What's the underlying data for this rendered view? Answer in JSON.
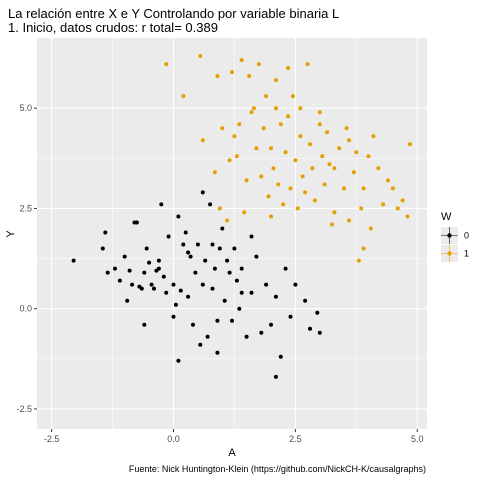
{
  "chart_data": {
    "type": "scatter",
    "title": "La relación entre X e Y Controlando por variable binaria L",
    "subtitle": "1. Inicio, datos crudos: r total= 0.389",
    "xlabel": "A",
    "ylabel": "Y",
    "caption": "Fuente: Nick Huntington-Klein (https://github.com/NickCH-K/causalgraphs)",
    "xlim": [
      -2.8,
      5.2
    ],
    "ylim": [
      -3.0,
      6.75
    ],
    "x_ticks": [
      -2.5,
      0.0,
      2.5,
      5.0
    ],
    "x_tick_labels": [
      "-2.5",
      "0.0",
      "2.5",
      "5.0"
    ],
    "y_ticks": [
      -2.5,
      0.0,
      2.5,
      5.0
    ],
    "y_tick_labels": [
      "-2.5",
      "0.0",
      "2.5",
      "5.0"
    ],
    "grid": true,
    "legend": {
      "title": "W",
      "position": "right",
      "entries": [
        "0",
        "1"
      ]
    },
    "colors": {
      "panel": "#ebebeb",
      "grid": "#ffffff",
      "w0": "#000000",
      "w1": "#e69f00"
    },
    "series": [
      {
        "name": "0",
        "color": "#000000",
        "points": [
          [
            -2.05,
            1.2
          ],
          [
            -1.45,
            1.5
          ],
          [
            -1.4,
            1.9
          ],
          [
            -1.35,
            0.9
          ],
          [
            -1.2,
            1.0
          ],
          [
            -1.1,
            0.7
          ],
          [
            -1.0,
            1.3
          ],
          [
            -0.95,
            0.2
          ],
          [
            -0.9,
            0.95
          ],
          [
            -0.85,
            0.6
          ],
          [
            -0.8,
            2.15
          ],
          [
            -0.75,
            2.15
          ],
          [
            -0.7,
            0.55
          ],
          [
            -0.65,
            0.5
          ],
          [
            -0.6,
            0.9
          ],
          [
            -0.55,
            1.5
          ],
          [
            -0.5,
            1.15
          ],
          [
            -0.45,
            0.6
          ],
          [
            -0.4,
            0.5
          ],
          [
            -0.35,
            0.95
          ],
          [
            -0.3,
            1.2
          ],
          [
            -0.25,
            2.6
          ],
          [
            -0.2,
            0.8
          ],
          [
            -0.15,
            0.4
          ],
          [
            -0.1,
            1.8
          ],
          [
            0.0,
            -0.2
          ],
          [
            0.05,
            0.1
          ],
          [
            0.1,
            2.3
          ],
          [
            0.15,
            0.45
          ],
          [
            0.2,
            1.6
          ],
          [
            0.25,
            1.9
          ],
          [
            0.3,
            0.3
          ],
          [
            0.35,
            1.3
          ],
          [
            0.4,
            -0.4
          ],
          [
            0.45,
            0.9
          ],
          [
            0.5,
            1.6
          ],
          [
            0.55,
            -0.9
          ],
          [
            0.6,
            0.6
          ],
          [
            0.65,
            1.2
          ],
          [
            0.7,
            -0.7
          ],
          [
            0.75,
            2.6
          ],
          [
            0.8,
            0.5
          ],
          [
            0.85,
            1.0
          ],
          [
            0.9,
            -0.3
          ],
          [
            0.95,
            1.5
          ],
          [
            1.0,
            2.0
          ],
          [
            1.05,
            0.2
          ],
          [
            1.1,
            1.2
          ],
          [
            1.15,
            0.9
          ],
          [
            1.2,
            -0.3
          ],
          [
            1.25,
            1.5
          ],
          [
            1.3,
            0.7
          ],
          [
            1.35,
            0.0
          ],
          [
            1.4,
            1.0
          ],
          [
            1.5,
            -0.7
          ],
          [
            1.6,
            0.4
          ],
          [
            1.7,
            1.3
          ],
          [
            1.8,
            -0.6
          ],
          [
            1.9,
            0.6
          ],
          [
            2.0,
            -0.4
          ],
          [
            2.1,
            0.3
          ],
          [
            2.2,
            -1.2
          ],
          [
            2.3,
            1.0
          ],
          [
            2.4,
            -0.2
          ],
          [
            2.5,
            0.6
          ],
          [
            2.7,
            0.2
          ],
          [
            2.8,
            -0.5
          ],
          [
            2.95,
            -0.1
          ],
          [
            3.0,
            -0.6
          ],
          [
            -0.6,
            -0.4
          ],
          [
            0.6,
            2.9
          ],
          [
            0.1,
            -1.3
          ],
          [
            -0.3,
            1.0
          ],
          [
            0.8,
            1.6
          ],
          [
            1.4,
            0.4
          ],
          [
            2.1,
            -1.7
          ],
          [
            0.3,
            1.4
          ],
          [
            0.9,
            -1.1
          ],
          [
            1.6,
            1.8
          ],
          [
            0.0,
            0.6
          ]
        ]
      },
      {
        "name": "1",
        "color": "#e69f00",
        "points": [
          [
            -0.15,
            6.1
          ],
          [
            0.2,
            5.3
          ],
          [
            0.6,
            4.2
          ],
          [
            0.55,
            6.3
          ],
          [
            0.9,
            5.8
          ],
          [
            0.95,
            2.5
          ],
          [
            1.0,
            4.5
          ],
          [
            1.1,
            2.2
          ],
          [
            1.2,
            5.9
          ],
          [
            1.3,
            3.8
          ],
          [
            1.35,
            4.6
          ],
          [
            1.4,
            6.2
          ],
          [
            1.5,
            3.2
          ],
          [
            1.55,
            5.8
          ],
          [
            1.6,
            4.9
          ],
          [
            1.7,
            4.0
          ],
          [
            1.75,
            6.1
          ],
          [
            1.8,
            3.3
          ],
          [
            1.85,
            4.5
          ],
          [
            1.9,
            5.3
          ],
          [
            1.95,
            2.8
          ],
          [
            2.0,
            4.0
          ],
          [
            2.05,
            3.5
          ],
          [
            2.1,
            5.0
          ],
          [
            2.15,
            3.1
          ],
          [
            2.2,
            4.6
          ],
          [
            2.25,
            2.6
          ],
          [
            2.3,
            3.9
          ],
          [
            2.35,
            4.8
          ],
          [
            2.4,
            3.0
          ],
          [
            2.45,
            5.3
          ],
          [
            2.5,
            3.7
          ],
          [
            2.55,
            2.5
          ],
          [
            2.6,
            4.3
          ],
          [
            2.65,
            3.3
          ],
          [
            2.7,
            2.9
          ],
          [
            2.75,
            6.1
          ],
          [
            2.8,
            4.1
          ],
          [
            2.85,
            3.5
          ],
          [
            2.9,
            2.7
          ],
          [
            3.0,
            4.6
          ],
          [
            3.05,
            3.8
          ],
          [
            3.1,
            3.1
          ],
          [
            3.15,
            4.4
          ],
          [
            3.2,
            3.6
          ],
          [
            3.25,
            2.1
          ],
          [
            3.3,
            3.5
          ],
          [
            3.4,
            4.0
          ],
          [
            3.5,
            3.0
          ],
          [
            3.55,
            4.5
          ],
          [
            3.6,
            2.2
          ],
          [
            3.7,
            3.4
          ],
          [
            3.75,
            3.9
          ],
          [
            3.8,
            1.2
          ],
          [
            3.85,
            2.5
          ],
          [
            3.9,
            3.0
          ],
          [
            4.0,
            3.8
          ],
          [
            4.05,
            2.0
          ],
          [
            4.1,
            4.3
          ],
          [
            4.2,
            3.5
          ],
          [
            4.3,
            2.6
          ],
          [
            4.4,
            3.2
          ],
          [
            4.6,
            2.5
          ],
          [
            4.7,
            2.7
          ],
          [
            4.8,
            2.3
          ],
          [
            4.85,
            4.1
          ],
          [
            1.45,
            2.4
          ],
          [
            0.85,
            3.4
          ],
          [
            1.25,
            4.3
          ],
          [
            2.0,
            2.3
          ],
          [
            2.6,
            5.0
          ],
          [
            3.3,
            2.4
          ],
          [
            3.9,
            1.5
          ],
          [
            4.5,
            3.0
          ],
          [
            1.65,
            5.0
          ],
          [
            2.35,
            6.0
          ],
          [
            1.15,
            3.7
          ],
          [
            3.0,
            4.9
          ],
          [
            2.1,
            5.7
          ],
          [
            3.6,
            4.2
          ]
        ]
      }
    ]
  }
}
